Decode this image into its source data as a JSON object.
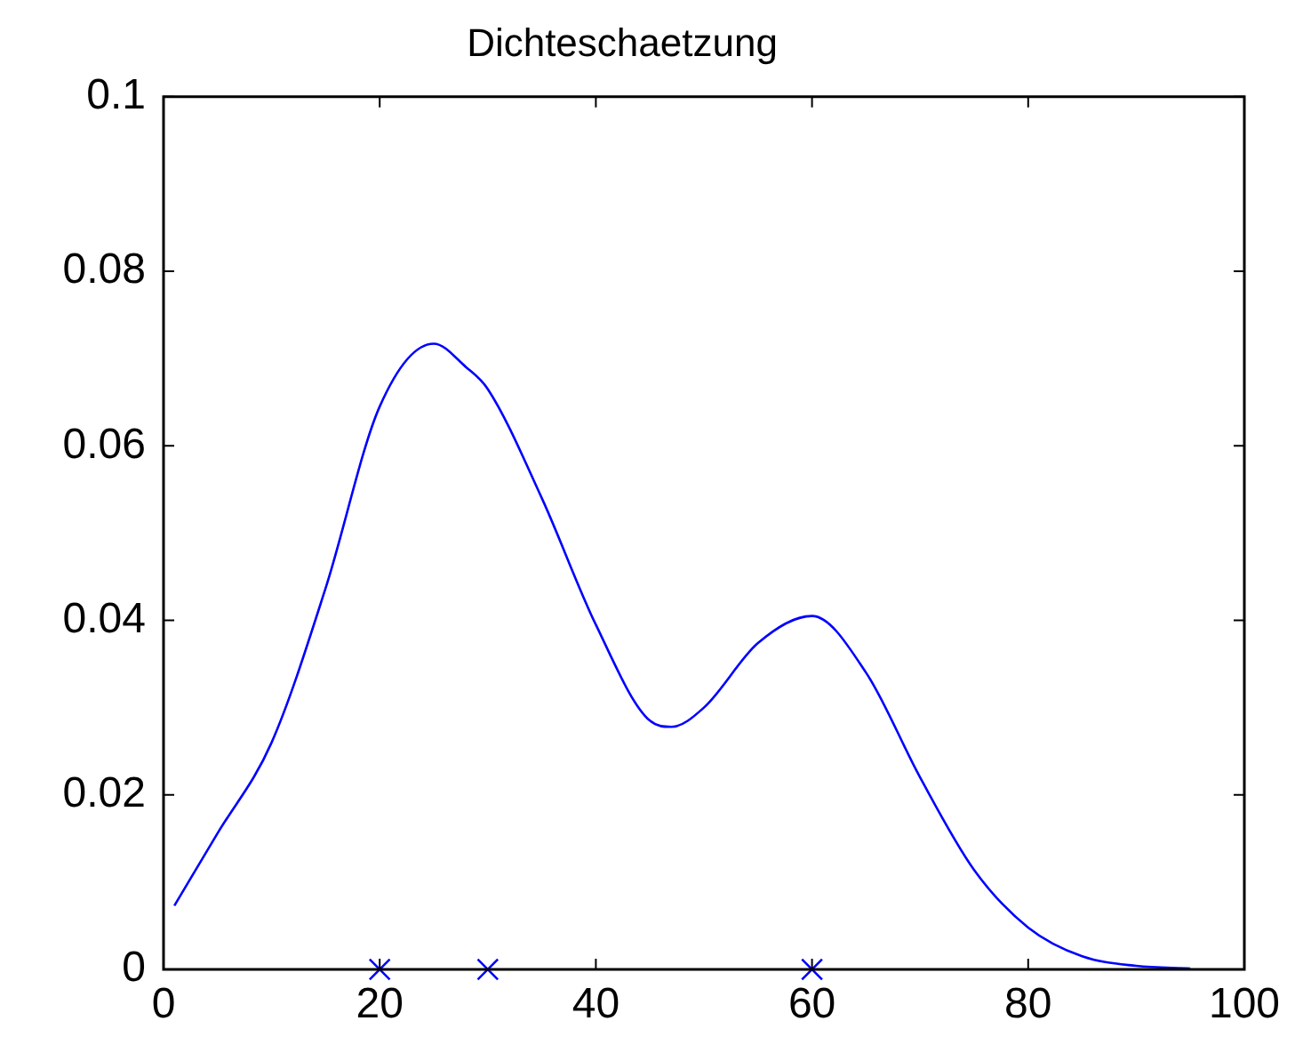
{
  "chart_data": {
    "type": "line",
    "title": "Dichteschaetzung",
    "xlim": [
      0,
      100
    ],
    "xticks": [
      0,
      20,
      40,
      60,
      80,
      100
    ],
    "ylim": [
      0,
      0.1
    ],
    "yticks": [
      0,
      0.02,
      0.04,
      0.06,
      0.08,
      0.1
    ],
    "grid": false,
    "legend": false,
    "series": [
      {
        "color": "#0000ff",
        "marker": "none",
        "line_style": "solid",
        "x": [
          1,
          5,
          10,
          15,
          20,
          25,
          28,
          30,
          35,
          40,
          45,
          47,
          50,
          55,
          60,
          65,
          70,
          75,
          80,
          85,
          90,
          95
        ],
        "values": [
          0.0073,
          0.0156,
          0.026,
          0.0437,
          0.0645,
          0.0717,
          0.069,
          0.0665,
          0.054,
          0.0395,
          0.0285,
          0.0278,
          0.03,
          0.0374,
          0.0405,
          0.034,
          0.022,
          0.0114,
          0.0048,
          0.0015,
          0.0004,
          0.0001
        ]
      },
      {
        "type": "scatter",
        "color": "#0000ff",
        "marker": "cross",
        "x": [
          20,
          30,
          60
        ],
        "values": [
          0,
          0,
          0
        ]
      }
    ]
  }
}
